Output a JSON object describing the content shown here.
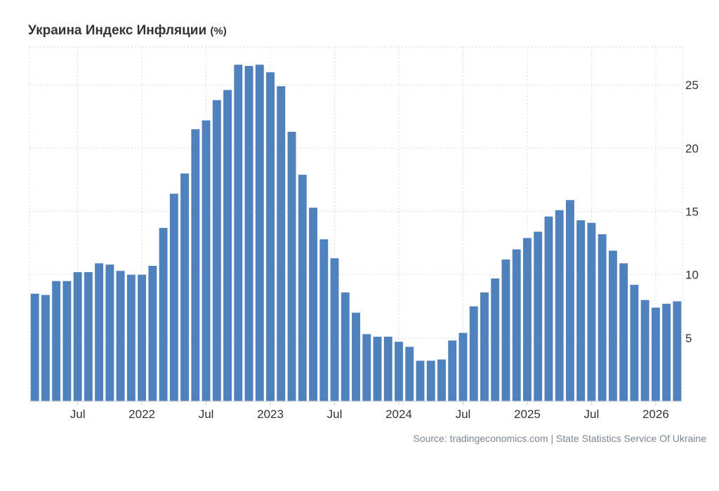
{
  "chart_data": {
    "type": "bar",
    "title": "Украина Индекс Инфляции",
    "unit": "(%)",
    "xlabel": "",
    "ylabel": "",
    "ylim": [
      0,
      28
    ],
    "y_ticks": [
      5,
      10,
      15,
      20,
      25
    ],
    "y_axis_side": "right",
    "grid": true,
    "bar_color": "#4f81bd",
    "x_tick_labels": [
      {
        "label": "Jul",
        "index": 4
      },
      {
        "label": "2022",
        "index": 10
      },
      {
        "label": "Jul",
        "index": 16
      },
      {
        "label": "2023",
        "index": 22
      },
      {
        "label": "Jul",
        "index": 28
      },
      {
        "label": "2024",
        "index": 34
      },
      {
        "label": "Jul",
        "index": 40
      },
      {
        "label": "2025",
        "index": 46
      },
      {
        "label": "Jul",
        "index": 52
      },
      {
        "label": "2026",
        "index": 58
      }
    ],
    "values": [
      8.5,
      8.4,
      9.5,
      9.5,
      10.2,
      10.2,
      10.9,
      10.8,
      10.3,
      10.0,
      10.0,
      10.7,
      13.7,
      16.4,
      18.0,
      21.5,
      22.2,
      23.8,
      24.6,
      26.6,
      26.5,
      26.6,
      26.0,
      24.9,
      21.3,
      17.9,
      15.3,
      12.8,
      11.3,
      8.6,
      7.0,
      5.3,
      5.1,
      5.1,
      4.7,
      4.3,
      3.2,
      3.2,
      3.3,
      4.8,
      5.4,
      7.5,
      8.6,
      9.7,
      11.2,
      12.0,
      12.9,
      13.4,
      14.6,
      15.1,
      15.9,
      14.3,
      14.1,
      13.2,
      11.9,
      10.9,
      9.2,
      8.0,
      7.4,
      7.7,
      7.9
    ]
  },
  "source": "Source: tradingeconomics.com | State Statistics Service Of Ukraine"
}
